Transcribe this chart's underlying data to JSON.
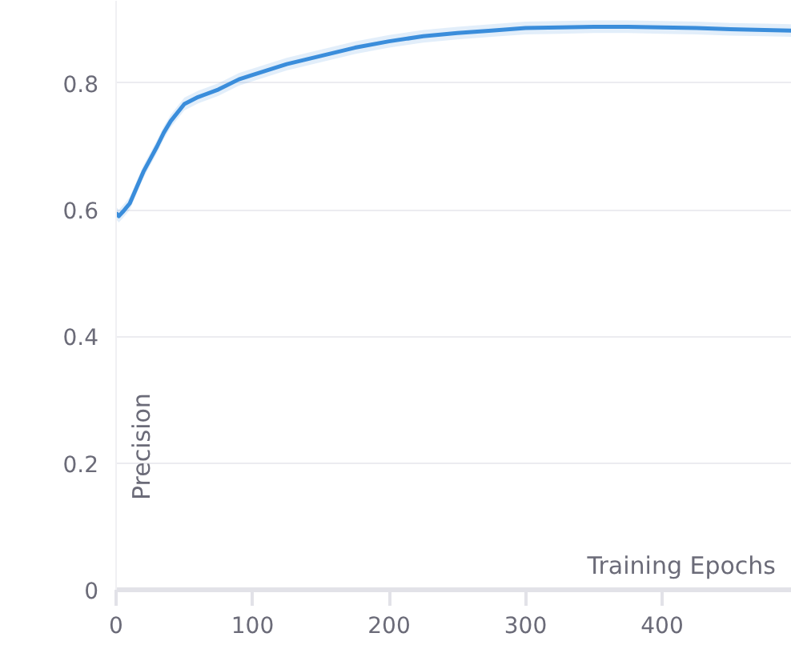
{
  "chart_data": {
    "type": "line",
    "xlabel": "Training Epochs",
    "ylabel": "Precision",
    "x": [
      0,
      2,
      5,
      10,
      15,
      20,
      25,
      30,
      35,
      40,
      50,
      60,
      75,
      90,
      100,
      125,
      150,
      175,
      200,
      225,
      250,
      275,
      300,
      325,
      350,
      375,
      400,
      425,
      450,
      475,
      495
    ],
    "series": [
      {
        "color": "#3a8ddb",
        "values": [
          0.595,
          0.59,
          0.597,
          0.61,
          0.635,
          0.66,
          0.68,
          0.7,
          0.722,
          0.74,
          0.767,
          0.778,
          0.79,
          0.806,
          0.813,
          0.83,
          0.843,
          0.856,
          0.866,
          0.874,
          0.879,
          0.883,
          0.887,
          0.888,
          0.889,
          0.889,
          0.888,
          0.887,
          0.885,
          0.884,
          0.883
        ],
        "lower": [
          0.585,
          0.58,
          0.587,
          0.6,
          0.625,
          0.65,
          0.67,
          0.69,
          0.712,
          0.73,
          0.757,
          0.768,
          0.78,
          0.796,
          0.803,
          0.82,
          0.833,
          0.846,
          0.856,
          0.864,
          0.869,
          0.873,
          0.877,
          0.878,
          0.879,
          0.879,
          0.878,
          0.877,
          0.875,
          0.874,
          0.873
        ],
        "upper": [
          0.605,
          0.6,
          0.607,
          0.62,
          0.645,
          0.67,
          0.69,
          0.71,
          0.732,
          0.75,
          0.777,
          0.788,
          0.8,
          0.816,
          0.823,
          0.84,
          0.853,
          0.866,
          0.876,
          0.884,
          0.889,
          0.893,
          0.897,
          0.898,
          0.899,
          0.899,
          0.898,
          0.897,
          0.895,
          0.894,
          0.893
        ]
      }
    ],
    "xlim": [
      0,
      495
    ],
    "ylim": [
      0,
      0.93
    ],
    "xticks": [
      0,
      100,
      200,
      300,
      400
    ],
    "yticks": [
      0,
      0.2,
      0.4,
      0.6,
      0.8
    ],
    "grid": "y",
    "marker": "none",
    "line_style": "solid"
  }
}
